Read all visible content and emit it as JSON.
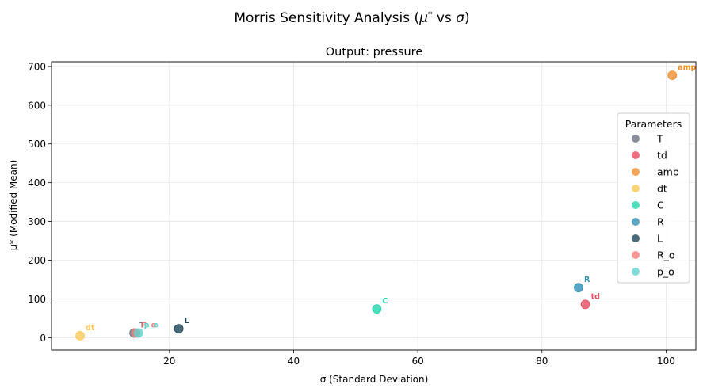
{
  "chart_data": {
    "type": "scatter",
    "suptitle": "Morris Sensitivity Analysis (μ* vs σ)",
    "title": "Output: pressure",
    "xlabel": "σ (Standard Deviation)",
    "ylabel": "μ* (Modified Mean)",
    "xlim": [
      1,
      104.8
    ],
    "ylim": [
      -32,
      712
    ],
    "xticks": [
      20,
      40,
      60,
      80,
      100
    ],
    "yticks": [
      0,
      100,
      200,
      300,
      400,
      500,
      600,
      700
    ],
    "grid": true,
    "legend": {
      "title": "Parameters",
      "placement": "right"
    },
    "series": [
      {
        "name": "T",
        "color": "#6c6f82",
        "x": 14.3,
        "y": 12,
        "label": "T"
      },
      {
        "name": "td",
        "color": "#e84a5f",
        "x": 87.0,
        "y": 86,
        "label": "td"
      },
      {
        "name": "amp",
        "color": "#f28e2b",
        "x": 101.0,
        "y": 677,
        "label": "amp"
      },
      {
        "name": "dt",
        "color": "#ffc857",
        "x": 5.6,
        "y": 5,
        "label": "dt"
      },
      {
        "name": "C",
        "color": "#1fd6ad",
        "x": 53.4,
        "y": 74,
        "label": "C"
      },
      {
        "name": "R",
        "color": "#2e8fb5",
        "x": 85.9,
        "y": 129,
        "label": "R"
      },
      {
        "name": "L",
        "color": "#1b4558",
        "x": 21.5,
        "y": 23,
        "label": "L"
      },
      {
        "name": "R_o",
        "color": "#ff7b7b",
        "x": 14.6,
        "y": 12,
        "label": "R_o"
      },
      {
        "name": "p_o",
        "color": "#5fd6cf",
        "x": 15.0,
        "y": 12,
        "label": "p_o"
      }
    ]
  }
}
